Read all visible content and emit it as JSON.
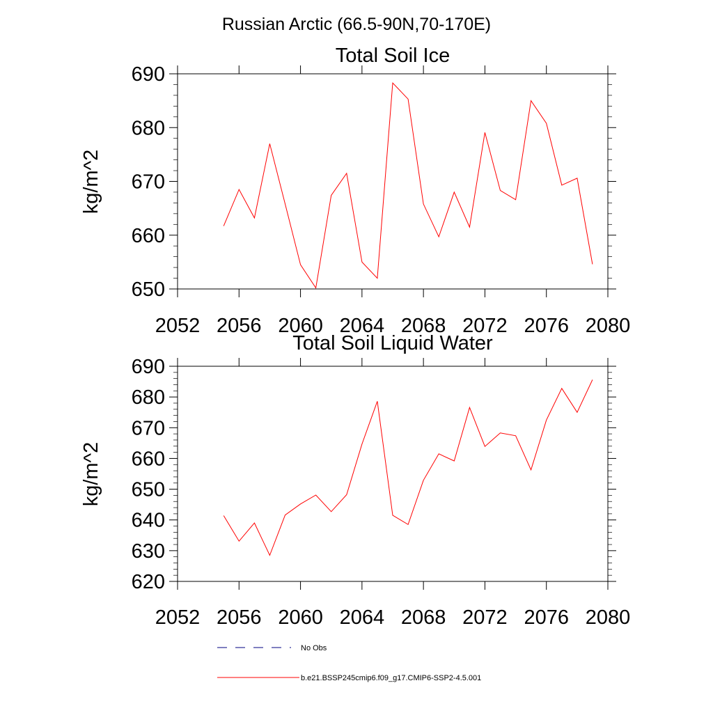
{
  "figure": {
    "title": "Russian Arctic (66.5-90N,70-170E)",
    "line_color": "#ff0000",
    "legend": [
      {
        "label": "No Obs",
        "style": "dashed",
        "color": "#000080"
      },
      {
        "label": "b.e21.BSSP245cmip6.f09_g17.CMIP6-SSP2-4.5.001",
        "style": "solid",
        "color": "#ff0000"
      }
    ]
  },
  "chart_data": [
    {
      "type": "line",
      "title": "Total Soil Ice",
      "xlabel": "",
      "ylabel": "kg/m^2",
      "xlim": [
        2052,
        2080
      ],
      "ylim": [
        650,
        690
      ],
      "xticks": [
        2052,
        2056,
        2060,
        2064,
        2068,
        2072,
        2076,
        2080
      ],
      "yticks": [
        650,
        660,
        670,
        680,
        690
      ],
      "grid": false,
      "series": [
        {
          "name": "b.e21.BSSP245cmip6.f09_g17.CMIP6-SSP2-4.5.001",
          "x": [
            2055,
            2056,
            2057,
            2058,
            2059,
            2060,
            2061,
            2062,
            2063,
            2064,
            2065,
            2066,
            2067,
            2068,
            2069,
            2070,
            2071,
            2072,
            2073,
            2074,
            2075,
            2076,
            2077,
            2078,
            2079
          ],
          "values": [
            661.7,
            668.5,
            663.2,
            677.0,
            665.8,
            654.5,
            650.2,
            667.4,
            671.5,
            655.0,
            652.0,
            688.3,
            685.3,
            665.8,
            659.7,
            668.0,
            661.5,
            679.1,
            668.3,
            666.6,
            685.0,
            680.8,
            669.3,
            670.6,
            654.6
          ]
        }
      ]
    },
    {
      "type": "line",
      "title": "Total Soil Liquid Water",
      "xlabel": "",
      "ylabel": "kg/m^2",
      "xlim": [
        2052,
        2080
      ],
      "ylim": [
        620,
        690
      ],
      "xticks": [
        2052,
        2056,
        2060,
        2064,
        2068,
        2072,
        2076,
        2080
      ],
      "yticks": [
        620,
        630,
        640,
        650,
        660,
        670,
        680,
        690
      ],
      "grid": false,
      "series": [
        {
          "name": "b.e21.BSSP245cmip6.f09_g17.CMIP6-SSP2-4.5.001",
          "x": [
            2055,
            2056,
            2057,
            2058,
            2059,
            2060,
            2061,
            2062,
            2063,
            2064,
            2065,
            2066,
            2067,
            2068,
            2069,
            2070,
            2071,
            2072,
            2073,
            2074,
            2075,
            2076,
            2077,
            2078,
            2079
          ],
          "values": [
            641.4,
            633.1,
            639.0,
            628.5,
            641.6,
            645.2,
            648.1,
            642.7,
            648.2,
            664.7,
            678.6,
            641.5,
            638.5,
            652.9,
            661.5,
            659.2,
            676.6,
            663.9,
            668.3,
            667.4,
            656.3,
            672.5,
            682.8,
            675.0,
            685.6
          ]
        }
      ]
    }
  ]
}
